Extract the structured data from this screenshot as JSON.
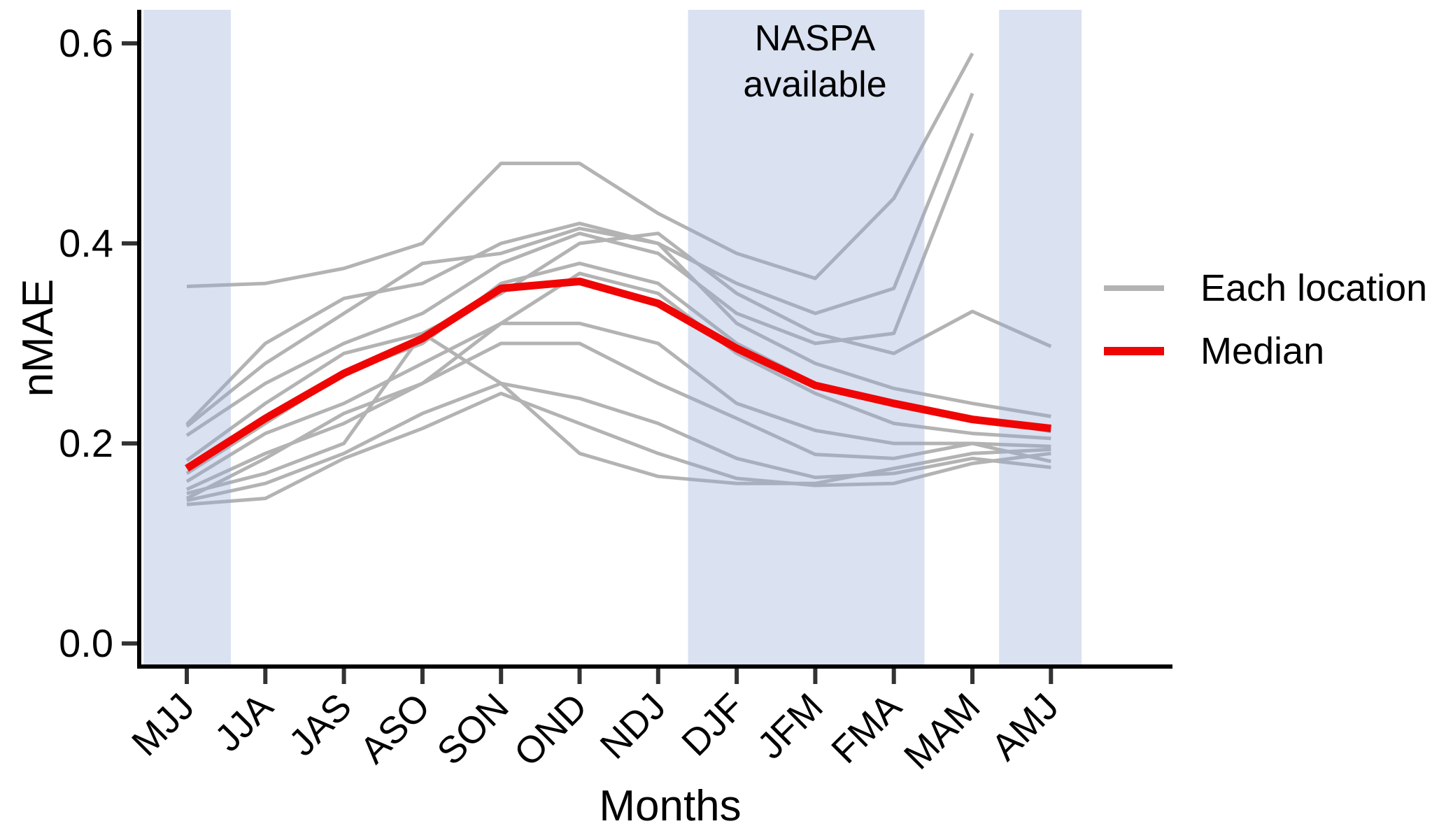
{
  "figure": {
    "background": "#ffffff",
    "y_axis": {
      "label": "nMAE",
      "tick_labels": [
        "0.0",
        "0.2",
        "0.4",
        "0.6"
      ],
      "tick_values": [
        0.0,
        0.2,
        0.4,
        0.6
      ]
    },
    "x_axis": {
      "label": "Months",
      "categories": [
        "MJJ",
        "JJA",
        "JAS",
        "ASO",
        "SON",
        "OND",
        "NDJ",
        "DJF",
        "JFM",
        "FMA",
        "MAM",
        "AMJ"
      ]
    },
    "annotation": {
      "line1": "NASPA",
      "line2": "available"
    },
    "legend": [
      {
        "label": "Each location",
        "color": "#b3b3b3"
      },
      {
        "label": "Median",
        "color": "#f00505"
      }
    ],
    "colors": {
      "gray_line": "#b3b3b3",
      "median_line": "#f00505",
      "band_fill": "rgba(149,170,214,0.35)",
      "axis": "#000000",
      "tick_mark": "#333333",
      "text": "#000000"
    }
  },
  "chart_data": {
    "type": "line",
    "title": "",
    "xlabel": "Months",
    "ylabel": "nMAE",
    "ylim": [
      0.0,
      0.63
    ],
    "yticks": [
      0.0,
      0.2,
      0.4,
      0.6
    ],
    "grid": false,
    "legend_position": "right",
    "categories": [
      "MJJ",
      "JJA",
      "JAS",
      "ASO",
      "SON",
      "OND",
      "NDJ",
      "DJF",
      "JFM",
      "FMA",
      "MAM",
      "AMJ"
    ],
    "bands": [
      {
        "label": "",
        "from_index": -0.55,
        "to_index": 0.56
      },
      {
        "label": "NASPA available",
        "from_index": 6.38,
        "to_index": 9.39
      },
      {
        "label": "",
        "from_index": 10.34,
        "to_index": 11.39
      }
    ],
    "series": [
      {
        "name": "location-1",
        "values": [
          0.357,
          0.36,
          0.375,
          0.4,
          0.48,
          0.48,
          0.43,
          0.39,
          0.365,
          0.445,
          0.59,
          null
        ]
      },
      {
        "name": "location-2",
        "values": [
          0.219,
          0.3,
          0.345,
          0.36,
          0.4,
          0.42,
          0.4,
          0.36,
          0.33,
          0.355,
          0.55,
          null
        ]
      },
      {
        "name": "location-3",
        "values": [
          0.208,
          0.26,
          0.3,
          0.33,
          0.38,
          0.41,
          0.39,
          0.33,
          0.3,
          0.31,
          0.51,
          null
        ]
      },
      {
        "name": "location-4",
        "values": [
          0.183,
          0.24,
          0.29,
          0.31,
          0.35,
          0.4,
          0.41,
          0.35,
          0.31,
          0.29,
          0.332,
          0.297
        ]
      },
      {
        "name": "location-5",
        "values": [
          0.217,
          0.28,
          0.33,
          0.38,
          0.39,
          0.415,
          0.4,
          0.32,
          0.28,
          0.255,
          0.24,
          0.227
        ]
      },
      {
        "name": "location-6",
        "values": [
          0.17,
          0.22,
          0.27,
          0.3,
          0.36,
          0.38,
          0.36,
          0.3,
          0.26,
          0.24,
          0.225,
          0.212
        ]
      },
      {
        "name": "location-7",
        "values": [
          0.162,
          0.21,
          0.24,
          0.28,
          0.32,
          0.37,
          0.35,
          0.29,
          0.25,
          0.22,
          0.21,
          0.205
        ]
      },
      {
        "name": "location-8",
        "values": [
          0.154,
          0.19,
          0.22,
          0.26,
          0.32,
          0.32,
          0.3,
          0.24,
          0.213,
          0.2,
          0.2,
          0.197
        ]
      },
      {
        "name": "location-9",
        "values": [
          0.15,
          0.17,
          0.2,
          0.31,
          0.26,
          0.19,
          0.167,
          0.16,
          0.16,
          0.175,
          0.19,
          0.194
        ]
      },
      {
        "name": "location-10",
        "values": [
          0.145,
          0.185,
          0.23,
          0.26,
          0.3,
          0.3,
          0.26,
          0.225,
          0.189,
          0.185,
          0.2,
          0.182
        ]
      },
      {
        "name": "location-11",
        "values": [
          0.143,
          0.16,
          0.19,
          0.23,
          0.26,
          0.245,
          0.22,
          0.185,
          0.166,
          0.17,
          0.185,
          0.176
        ]
      },
      {
        "name": "location-12",
        "values": [
          0.139,
          0.145,
          0.185,
          0.215,
          0.25,
          0.22,
          0.19,
          0.165,
          0.158,
          0.16,
          0.18,
          0.19
        ]
      }
    ],
    "median_series": {
      "name": "Median",
      "values": [
        0.175,
        0.225,
        0.27,
        0.305,
        0.355,
        0.362,
        0.34,
        0.295,
        0.258,
        0.24,
        0.224,
        0.215
      ]
    }
  }
}
